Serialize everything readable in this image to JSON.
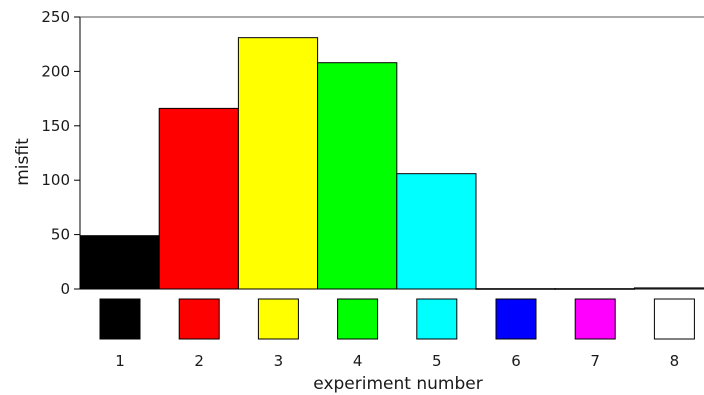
{
  "chart_data": {
    "type": "bar",
    "title": "",
    "xlabel": "experiment number",
    "ylabel": "misfit",
    "ylim": [
      0,
      250
    ],
    "y_ticks": [
      0,
      50,
      100,
      150,
      200,
      250
    ],
    "categories": [
      "1",
      "2",
      "3",
      "4",
      "5",
      "6",
      "7",
      "8"
    ],
    "values": [
      49,
      166,
      231,
      208,
      106,
      0.3,
      0.3,
      1
    ],
    "colors": [
      "#000000",
      "#ff0000",
      "#ffff00",
      "#00ff00",
      "#00ffff",
      "#0000ff",
      "#ff00ff",
      "#ffffff"
    ],
    "grid": false,
    "legend": "color swatches below bars"
  }
}
